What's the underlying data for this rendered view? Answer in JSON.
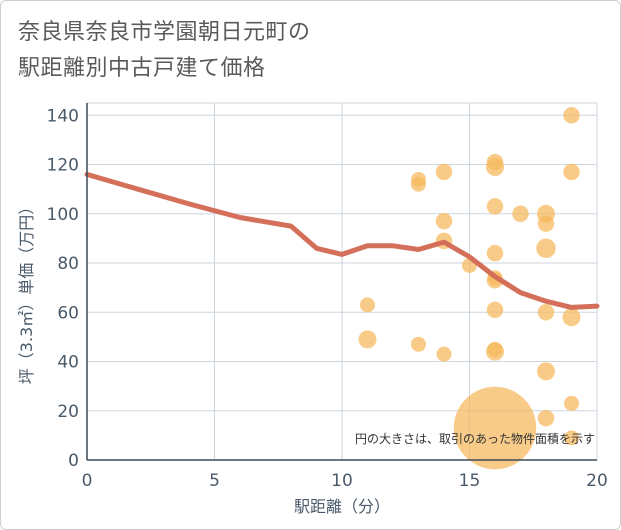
{
  "chart_data": {
    "type": "scatter",
    "title_lines": [
      "奈良県奈良市学園朝日元町の",
      "駅距離別中古戸建て価格"
    ],
    "xlabel": "駅距離（分）",
    "ylabel": "坪（3.3㎡）単価（万円）",
    "xlim": [
      0,
      20
    ],
    "ylim": [
      0,
      145
    ],
    "xticks": [
      0,
      5,
      10,
      15,
      20
    ],
    "yticks": [
      0,
      20,
      40,
      60,
      80,
      100,
      120,
      140
    ],
    "note": "円の大きさは、取引のあった物件面積を示す",
    "colors": {
      "bubble": "#f5b85a",
      "line": "#d4705a",
      "grid": "#cdd6df",
      "axis": "#3d4a57"
    },
    "points": [
      {
        "x": 11,
        "y": 63,
        "s": 1
      },
      {
        "x": 11,
        "y": 49,
        "s": 1.2
      },
      {
        "x": 13,
        "y": 114,
        "s": 1
      },
      {
        "x": 13,
        "y": 112,
        "s": 1
      },
      {
        "x": 13,
        "y": 47,
        "s": 1
      },
      {
        "x": 14,
        "y": 117,
        "s": 1.1
      },
      {
        "x": 14,
        "y": 97,
        "s": 1.1
      },
      {
        "x": 14,
        "y": 89,
        "s": 1.1
      },
      {
        "x": 14,
        "y": 43,
        "s": 1
      },
      {
        "x": 15,
        "y": 79,
        "s": 1
      },
      {
        "x": 16,
        "y": 121,
        "s": 1.1
      },
      {
        "x": 16,
        "y": 119,
        "s": 1.2
      },
      {
        "x": 16,
        "y": 103,
        "s": 1.1
      },
      {
        "x": 16,
        "y": 84,
        "s": 1.1
      },
      {
        "x": 16,
        "y": 74,
        "s": 1
      },
      {
        "x": 16,
        "y": 73,
        "s": 1.1
      },
      {
        "x": 16,
        "y": 61,
        "s": 1.1
      },
      {
        "x": 16,
        "y": 45,
        "s": 1
      },
      {
        "x": 16,
        "y": 44,
        "s": 1.2
      },
      {
        "x": 16,
        "y": 13,
        "s": 5.5
      },
      {
        "x": 17,
        "y": 100,
        "s": 1.1
      },
      {
        "x": 18,
        "y": 100,
        "s": 1.2
      },
      {
        "x": 18,
        "y": 96,
        "s": 1.1
      },
      {
        "x": 18,
        "y": 86,
        "s": 1.3
      },
      {
        "x": 18,
        "y": 60,
        "s": 1.1
      },
      {
        "x": 18,
        "y": 36,
        "s": 1.2
      },
      {
        "x": 18,
        "y": 17,
        "s": 1.1
      },
      {
        "x": 19,
        "y": 140,
        "s": 1.1
      },
      {
        "x": 19,
        "y": 117,
        "s": 1.1
      },
      {
        "x": 19,
        "y": 58,
        "s": 1.2
      },
      {
        "x": 19,
        "y": 23,
        "s": 1
      },
      {
        "x": 19,
        "y": 9,
        "s": 1
      }
    ],
    "trend": {
      "x": [
        0,
        2,
        4,
        6,
        8,
        9,
        10,
        11,
        12,
        13,
        14,
        15,
        16,
        17,
        18,
        19,
        20
      ],
      "y": [
        116,
        110,
        104,
        98.5,
        95,
        86,
        83.5,
        87,
        87,
        85.5,
        88.5,
        82.5,
        74.5,
        68,
        64.5,
        62,
        62.5
      ]
    }
  }
}
